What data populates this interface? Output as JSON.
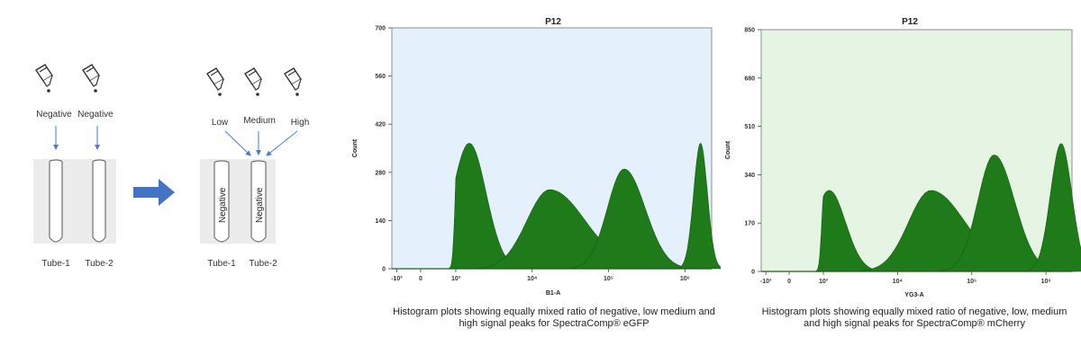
{
  "diagram": {
    "before_labels": [
      "Negative",
      "Negative"
    ],
    "before_tubes": [
      "Tube-1",
      "Tube-2"
    ],
    "after_labels": [
      "Low",
      "Medium",
      "High"
    ],
    "after_tubes": [
      "Tube-1",
      "Tube-2"
    ],
    "tube_contents": [
      "Negative",
      "Negative"
    ],
    "arrow_color": "#4472c4"
  },
  "chart_data": [
    {
      "type": "area",
      "title": "P12",
      "xlabel": "B1-A",
      "ylabel": "Count",
      "xscale": "log",
      "xlim": [
        -2000,
        2000000
      ],
      "ylim": [
        0,
        700
      ],
      "yticks": [
        0,
        140,
        280,
        420,
        560,
        700
      ],
      "xticks": [
        "-10³",
        "0",
        "10³",
        "10⁴",
        "10⁵",
        "10⁶"
      ],
      "background": "#e4f0fb",
      "fill": "#1f7a1a",
      "peaks": [
        {
          "x": 1500,
          "height": 365
        },
        {
          "x": 17000,
          "height": 230
        },
        {
          "x": 160000,
          "height": 290
        },
        {
          "x": 1600000,
          "height": 365
        }
      ],
      "caption": "Histogram plots showing equally mixed ratio of negative, low medium and high signal peaks for SpectraComp® eGFP"
    },
    {
      "type": "area",
      "title": "P12",
      "xlabel": "YG3-A",
      "ylabel": "Count",
      "xscale": "log",
      "xlim": [
        -2000,
        2000000
      ],
      "ylim": [
        0,
        850
      ],
      "yticks": [
        0,
        170,
        340,
        510,
        680,
        850
      ],
      "xticks": [
        "-10³",
        "0",
        "10³",
        "10⁴",
        "10⁵",
        "10⁶"
      ],
      "background": "#e6f4e3",
      "fill": "#1f7a1a",
      "peaks": [
        {
          "x": 1200,
          "height": 285
        },
        {
          "x": 28000,
          "height": 285
        },
        {
          "x": 200000,
          "height": 410
        },
        {
          "x": 1600000,
          "height": 450
        }
      ],
      "caption": "Histogram plots showing equally mixed ratio of negative, low, medium and high signal peaks for SpectraComp® mCherry"
    }
  ]
}
